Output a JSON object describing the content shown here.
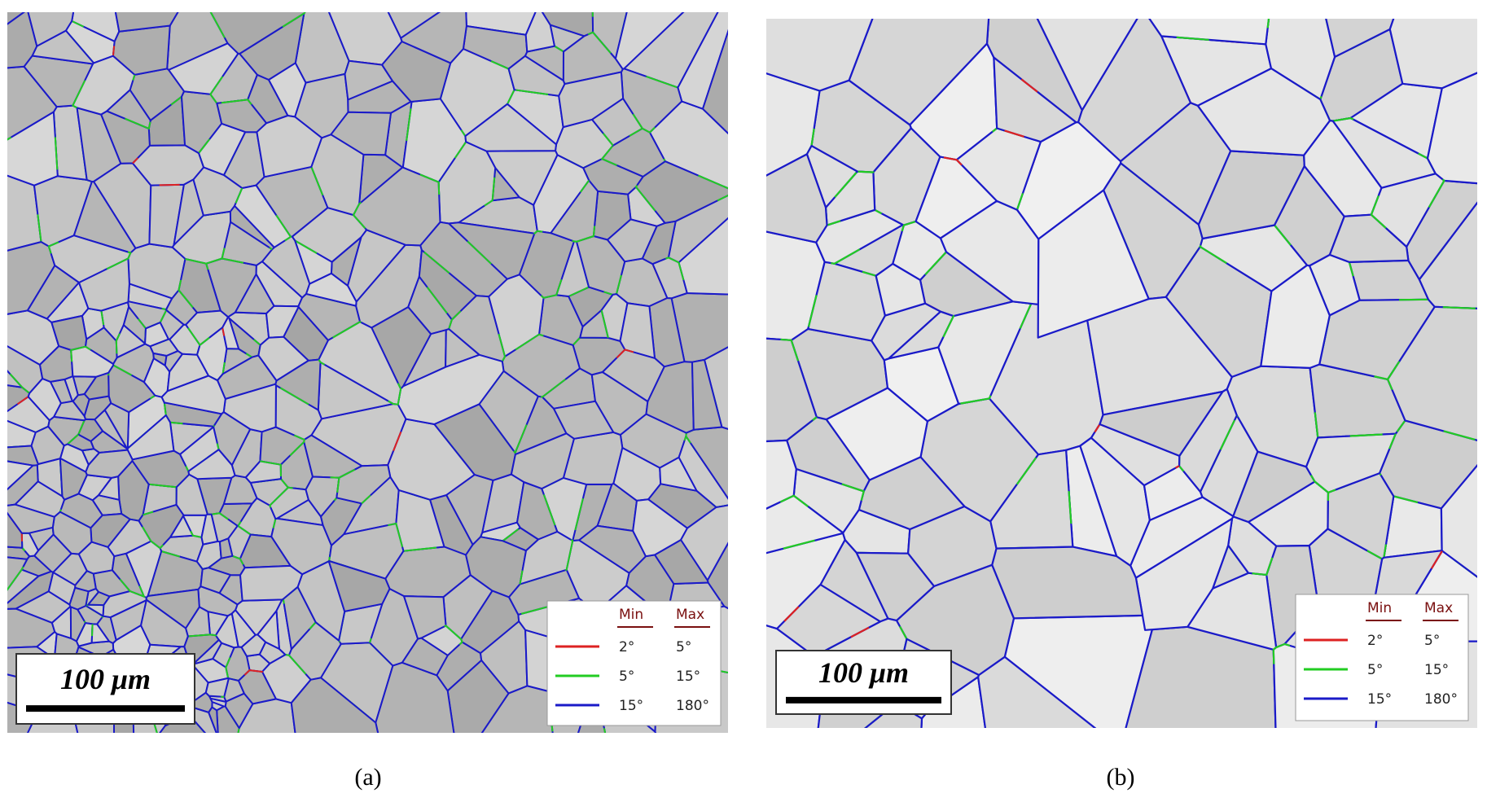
{
  "panels": [
    {
      "label": "(a)",
      "scale_bar": "100 μm",
      "legend": {
        "headers": [
          "Min",
          "Max"
        ],
        "rows": [
          [
            "2°",
            "5°"
          ],
          [
            "5°",
            "15°"
          ],
          [
            "15°",
            "180°"
          ]
        ]
      }
    },
    {
      "label": "(b)",
      "scale_bar": "100 μm",
      "legend": {
        "headers": [
          "Min",
          "Max"
        ],
        "rows": [
          [
            "2°",
            "5°"
          ],
          [
            "5°",
            "15°"
          ],
          [
            "15°",
            "180°"
          ]
        ]
      }
    }
  ]
}
